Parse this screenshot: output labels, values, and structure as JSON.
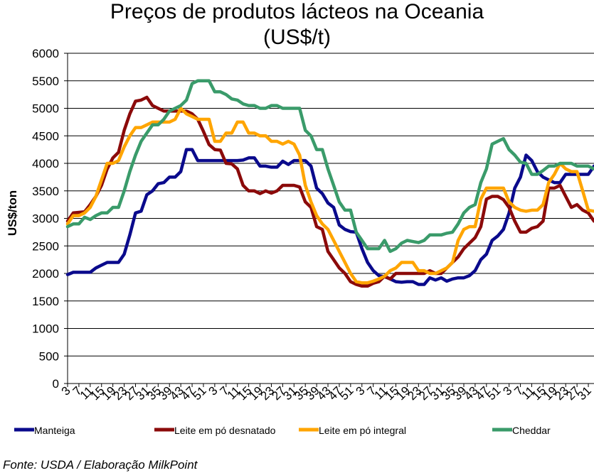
{
  "title_line1": "Preços de produtos lácteos na Oceania",
  "title_line2": "(US$/t)",
  "source": "Fonte: USDA / Elaboração MilkPoint",
  "chart_data": {
    "type": "line",
    "title": "Preços de produtos lácteos na Oceania (US$/t)",
    "xlabel": "",
    "ylabel": "US$/ton",
    "ylim": [
      0,
      6000
    ],
    "yticks": [
      0,
      500,
      1000,
      1500,
      2000,
      2500,
      3000,
      3500,
      4000,
      4500,
      5000,
      5500,
      6000
    ],
    "grid": "horizontal",
    "legend_position": "bottom",
    "x": [
      3,
      5,
      7,
      9,
      11,
      13,
      15,
      17,
      19,
      21,
      23,
      25,
      27,
      29,
      31,
      33,
      35,
      37,
      39,
      41,
      43,
      45,
      47,
      49,
      51,
      1,
      3,
      5,
      7,
      9,
      11,
      13,
      15,
      17,
      19,
      21,
      23,
      25,
      27,
      29,
      31,
      33,
      35,
      37,
      39,
      41,
      43,
      45,
      47,
      49,
      51,
      1,
      3,
      5,
      7,
      9,
      11,
      13,
      15,
      17,
      19,
      21,
      23,
      25,
      27,
      29,
      31,
      33,
      35,
      37,
      39,
      41,
      43,
      45,
      47,
      49,
      51,
      1,
      3,
      5,
      7,
      9,
      11,
      13,
      15,
      17,
      19,
      21,
      23,
      25,
      27,
      29,
      31,
      33
    ],
    "x_tick_labels": [
      "3",
      "7",
      "11",
      "15",
      "19",
      "23",
      "27",
      "31",
      "35",
      "39",
      "43",
      "47",
      "51",
      "3",
      "7",
      "11",
      "15",
      "19",
      "23",
      "27",
      "31",
      "35",
      "39",
      "43",
      "47",
      "51",
      "3",
      "7",
      "11",
      "15",
      "19",
      "23",
      "27",
      "31",
      "35",
      "39",
      "43",
      "47",
      "51",
      "3",
      "7",
      "11",
      "15",
      "19",
      "23",
      "27",
      "31"
    ],
    "series": [
      {
        "name": "Manteiga",
        "color": "#0a0a8c",
        "values": [
          1980,
          2020,
          2020,
          2020,
          2020,
          2100,
          2150,
          2200,
          2200,
          2200,
          2350,
          2700,
          3100,
          3130,
          3430,
          3500,
          3630,
          3650,
          3750,
          3750,
          3850,
          4250,
          4250,
          4050,
          4050,
          4050,
          4050,
          4050,
          4050,
          4050,
          4050,
          4060,
          4100,
          4100,
          3950,
          3950,
          3930,
          3930,
          4040,
          3980,
          4050,
          4050,
          4050,
          3950,
          3550,
          3450,
          3280,
          3200,
          2880,
          2800,
          2760,
          2750,
          2450,
          2200,
          2050,
          1960,
          1940,
          1900,
          1850,
          1840,
          1850,
          1850,
          1800,
          1800,
          1920,
          1880,
          1920,
          1860,
          1900,
          1920,
          1920,
          1960,
          2050,
          2250,
          2350,
          2600,
          2680,
          2800,
          3100,
          3550,
          3750,
          4150,
          4050,
          3850,
          3750,
          3700,
          3650,
          3650,
          3800,
          3800,
          3800,
          3800,
          3800,
          3950
        ],
        "_note": ""
      },
      {
        "name": "Leite em pó desnatado",
        "color": "#8b0a0a",
        "values": [
          2950,
          3100,
          3110,
          3120,
          3250,
          3400,
          3600,
          3900,
          4100,
          4200,
          4600,
          4900,
          5130,
          5150,
          5200,
          5050,
          5000,
          4950,
          4950,
          4950,
          4950,
          4950,
          4900,
          4800,
          4580,
          4340,
          4250,
          4240,
          4000,
          3990,
          3900,
          3600,
          3500,
          3500,
          3450,
          3500,
          3460,
          3500,
          3600,
          3600,
          3600,
          3570,
          3300,
          3200,
          2850,
          2800,
          2400,
          2250,
          2100,
          2000,
          1850,
          1800,
          1770,
          1770,
          1820,
          1850,
          1950,
          1900,
          2000,
          2000,
          2000,
          2000,
          2000,
          2000,
          2050,
          2000,
          2000,
          2100,
          2200,
          2300,
          2450,
          2550,
          2650,
          2850,
          3350,
          3400,
          3400,
          3340,
          3200,
          2950,
          2750,
          2750,
          2820,
          2850,
          2950,
          3550,
          3550,
          3600,
          3400,
          3200,
          3250,
          3150,
          3100,
          2950
        ],
        "_note": ""
      },
      {
        "name": "Leite em pó integral",
        "color": "#ffa500",
        "values": [
          2900,
          3050,
          3050,
          3100,
          3200,
          3400,
          3700,
          4000,
          4000,
          4050,
          4300,
          4500,
          4650,
          4650,
          4700,
          4750,
          4750,
          4750,
          4750,
          4800,
          5000,
          4900,
          4850,
          4800,
          4800,
          4800,
          4400,
          4400,
          4550,
          4550,
          4750,
          4750,
          4550,
          4550,
          4500,
          4500,
          4400,
          4400,
          4350,
          4400,
          4350,
          4150,
          3600,
          3300,
          3050,
          2900,
          2800,
          2600,
          2400,
          2200,
          2000,
          1850,
          1830,
          1830,
          1860,
          1900,
          1950,
          2050,
          2100,
          2200,
          2200,
          2200,
          2050,
          2050,
          2000,
          2000,
          2050,
          2100,
          2200,
          2600,
          2800,
          2850,
          2850,
          3350,
          3550,
          3550,
          3550,
          3550,
          3300,
          3200,
          3150,
          3130,
          3150,
          3150,
          3250,
          3650,
          3800,
          4000,
          3900,
          3850,
          3850,
          3500,
          3150,
          3130
        ],
        "_note": ""
      },
      {
        "name": "Cheddar",
        "color": "#3a9b6a",
        "values": [
          2850,
          2900,
          2900,
          3020,
          2980,
          3050,
          3100,
          3100,
          3200,
          3200,
          3500,
          3850,
          4150,
          4400,
          4550,
          4700,
          4700,
          4800,
          4950,
          5000,
          5050,
          5150,
          5450,
          5500,
          5500,
          5500,
          5300,
          5300,
          5250,
          5170,
          5150,
          5080,
          5050,
          5050,
          5000,
          5000,
          5050,
          5050,
          5000,
          5000,
          5000,
          5000,
          4600,
          4500,
          4250,
          4250,
          3900,
          3600,
          3300,
          3150,
          3150,
          2750,
          2600,
          2450,
          2450,
          2450,
          2600,
          2400,
          2450,
          2550,
          2600,
          2580,
          2560,
          2600,
          2700,
          2700,
          2700,
          2730,
          2750,
          2900,
          3100,
          3200,
          3250,
          3650,
          3900,
          4350,
          4400,
          4450,
          4250,
          4150,
          4020,
          4000,
          3800,
          3800,
          3870,
          3950,
          3950,
          4000,
          4000,
          4000,
          3950,
          3950,
          3950,
          3900
        ]
      }
    ]
  }
}
